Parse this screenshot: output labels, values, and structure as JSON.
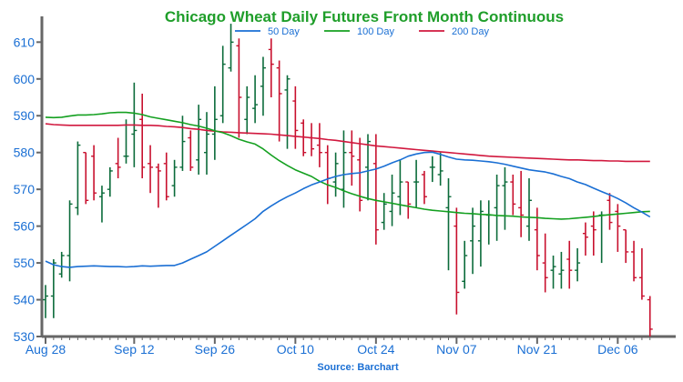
{
  "chart_data": {
    "type": "ohlc",
    "title": "Chicago Wheat Daily Futures Front Month Continuous",
    "source": "Source: Barchart",
    "ylim": [
      530,
      617
    ],
    "y_ticks": [
      530,
      540,
      550,
      560,
      570,
      580,
      590,
      600,
      610
    ],
    "x_tick_labels": [
      "Aug 28",
      "Sep 12",
      "Sep 26",
      "Oct 10",
      "Oct 24",
      "Nov 07",
      "Nov 21",
      "Dec 06"
    ],
    "x_tick_index": [
      0,
      11,
      21,
      31,
      41,
      51,
      61,
      71
    ],
    "grid": false,
    "legend_position": "top-center",
    "colors": {
      "up": "#0b6b3a",
      "down": "#c8102e",
      "ma50": "#1a6fd4",
      "ma100": "#14a020",
      "ma200": "#d1183e",
      "axis": "#666666"
    },
    "series": [
      {
        "name": "50 Day",
        "color": "#1a6fd4"
      },
      {
        "name": "100 Day",
        "color": "#14a020"
      },
      {
        "name": "200 Day",
        "color": "#d1183e"
      }
    ],
    "ohlc": [
      [
        540,
        544,
        535,
        541
      ],
      [
        541,
        551,
        535,
        550
      ],
      [
        547,
        553,
        546,
        552
      ],
      [
        552,
        567,
        545,
        566
      ],
      [
        565,
        583,
        563,
        582
      ],
      [
        580,
        580,
        566,
        567
      ],
      [
        579,
        582,
        567,
        569
      ],
      [
        568,
        571,
        561,
        569
      ],
      [
        570,
        576,
        568,
        575
      ],
      [
        577,
        584,
        573,
        576
      ],
      [
        579,
        589,
        577,
        579
      ],
      [
        585,
        599,
        576,
        586
      ],
      [
        589,
        596,
        573,
        576
      ],
      [
        577,
        582,
        569,
        576
      ],
      [
        576,
        577,
        565,
        575
      ],
      [
        577,
        580,
        567,
        568
      ],
      [
        571,
        578,
        568,
        576
      ],
      [
        576,
        590,
        575,
        583
      ],
      [
        584,
        586,
        575,
        576
      ],
      [
        578,
        593,
        574,
        589
      ],
      [
        580,
        591,
        574,
        585
      ],
      [
        585,
        598,
        578,
        589
      ],
      [
        590,
        609,
        588,
        604
      ],
      [
        603,
        615,
        602,
        610
      ],
      [
        609,
        611,
        584,
        595
      ],
      [
        589,
        598,
        585,
        595
      ],
      [
        592,
        601,
        588,
        593
      ],
      [
        598,
        606,
        590,
        603
      ],
      [
        608,
        611,
        595,
        604
      ],
      [
        603,
        605,
        583,
        596
      ],
      [
        597,
        601,
        581,
        600
      ],
      [
        594,
        598,
        581,
        586
      ],
      [
        588,
        589,
        579,
        580
      ],
      [
        584,
        588,
        579,
        581
      ],
      [
        582,
        588,
        576,
        580
      ],
      [
        580,
        582,
        566,
        573
      ],
      [
        572,
        580,
        568,
        577
      ],
      [
        570,
        586,
        565,
        580
      ],
      [
        580,
        586,
        571,
        579
      ],
      [
        578,
        584,
        564,
        567
      ],
      [
        576,
        585,
        567,
        583
      ],
      [
        577,
        585,
        555,
        559
      ],
      [
        561,
        569,
        559,
        566
      ],
      [
        564,
        574,
        560,
        569
      ],
      [
        568,
        578,
        563,
        572
      ],
      [
        572,
        572,
        562,
        566
      ],
      [
        572,
        578,
        565,
        572
      ],
      [
        574,
        575,
        566,
        568
      ],
      [
        576,
        579,
        572,
        576
      ],
      [
        574,
        580,
        571,
        575
      ],
      [
        565,
        573,
        548,
        568
      ],
      [
        560,
        565,
        536,
        542
      ],
      [
        545,
        556,
        543,
        552
      ],
      [
        556,
        565,
        547,
        560
      ],
      [
        556,
        567,
        549,
        564
      ],
      [
        563,
        567,
        555,
        563
      ],
      [
        565,
        574,
        556,
        571
      ],
      [
        571,
        576,
        559,
        572
      ],
      [
        572,
        574,
        563,
        566
      ],
      [
        565,
        575,
        557,
        563
      ],
      [
        560,
        573,
        556,
        567
      ],
      [
        559,
        565,
        548,
        552
      ],
      [
        550,
        558,
        542,
        546
      ],
      [
        548,
        552,
        543,
        549
      ],
      [
        547,
        553,
        543,
        548
      ],
      [
        551,
        556,
        543,
        548
      ],
      [
        548,
        554,
        545,
        550
      ],
      [
        558,
        561,
        552,
        557
      ],
      [
        560,
        564,
        552,
        559
      ],
      [
        563,
        564,
        550,
        563
      ],
      [
        567,
        569,
        559,
        561
      ],
      [
        564,
        566,
        553,
        560
      ],
      [
        559,
        559,
        550,
        553
      ],
      [
        553,
        556,
        545,
        546
      ],
      [
        546,
        554,
        540,
        541
      ],
      [
        540,
        541,
        530,
        532
      ]
    ],
    "ma50": [
      [
        0,
        550.5
      ],
      [
        1,
        549.5
      ],
      [
        2,
        549
      ],
      [
        3,
        548.8
      ],
      [
        4,
        549
      ],
      [
        5,
        549.1
      ],
      [
        6,
        549.2
      ],
      [
        7,
        549.1
      ],
      [
        8,
        549
      ],
      [
        9,
        549
      ],
      [
        10,
        548.9
      ],
      [
        11,
        549
      ],
      [
        12,
        549.2
      ],
      [
        13,
        549.1
      ],
      [
        14,
        549.2
      ],
      [
        15,
        549.3
      ],
      [
        16,
        549.3
      ],
      [
        17,
        550
      ],
      [
        18,
        551
      ],
      [
        19,
        552
      ],
      [
        20,
        553
      ],
      [
        21,
        554.5
      ],
      [
        22,
        556
      ],
      [
        23,
        557.5
      ],
      [
        24,
        559
      ],
      [
        25,
        560.5
      ],
      [
        26,
        562
      ],
      [
        27,
        564
      ],
      [
        28,
        565.5
      ],
      [
        29,
        566.8
      ],
      [
        30,
        568
      ],
      [
        31,
        569
      ],
      [
        32,
        570.2
      ],
      [
        33,
        571.2
      ],
      [
        34,
        572
      ],
      [
        35,
        572.8
      ],
      [
        36,
        573.5
      ],
      [
        37,
        574
      ],
      [
        38,
        574.3
      ],
      [
        39,
        574.5
      ],
      [
        40,
        575
      ],
      [
        41,
        575.5
      ],
      [
        42,
        576.3
      ],
      [
        43,
        577.2
      ],
      [
        44,
        578
      ],
      [
        45,
        579
      ],
      [
        46,
        579.6
      ],
      [
        47,
        580
      ],
      [
        48,
        580.1
      ],
      [
        49,
        579.5
      ],
      [
        50,
        578.8
      ],
      [
        51,
        578.2
      ],
      [
        52,
        578
      ],
      [
        53,
        577.9
      ],
      [
        54,
        577.7
      ],
      [
        55,
        577.5
      ],
      [
        56,
        577.2
      ],
      [
        57,
        576.8
      ],
      [
        58,
        576.3
      ],
      [
        59,
        575.8
      ],
      [
        60,
        575.3
      ],
      [
        61,
        575
      ],
      [
        62,
        574.7
      ],
      [
        63,
        574.2
      ],
      [
        64,
        573.5
      ],
      [
        65,
        572.9
      ],
      [
        66,
        572
      ],
      [
        67,
        571.3
      ],
      [
        68,
        570.3
      ],
      [
        69,
        569.4
      ],
      [
        70,
        568.5
      ],
      [
        71,
        567.5
      ],
      [
        72,
        566.3
      ],
      [
        73,
        565
      ],
      [
        74,
        563.8
      ],
      [
        75,
        562.5
      ]
    ],
    "ma100": [
      [
        0,
        589.6
      ],
      [
        1,
        589.5
      ],
      [
        2,
        589.6
      ],
      [
        3,
        589.9
      ],
      [
        4,
        590.2
      ],
      [
        5,
        590.2
      ],
      [
        6,
        590.3
      ],
      [
        7,
        590.5
      ],
      [
        8,
        590.8
      ],
      [
        9,
        590.9
      ],
      [
        10,
        590.9
      ],
      [
        11,
        590.7
      ],
      [
        12,
        590.3
      ],
      [
        13,
        589.7
      ],
      [
        14,
        589.3
      ],
      [
        15,
        588.9
      ],
      [
        16,
        588.5
      ],
      [
        17,
        588.1
      ],
      [
        18,
        587.6
      ],
      [
        19,
        587.2
      ],
      [
        20,
        586.6
      ],
      [
        21,
        585.9
      ],
      [
        22,
        585.4
      ],
      [
        23,
        584.6
      ],
      [
        24,
        583.6
      ],
      [
        25,
        582.9
      ],
      [
        26,
        582.3
      ],
      [
        27,
        581
      ],
      [
        28,
        579.3
      ],
      [
        29,
        577.8
      ],
      [
        30,
        576.5
      ],
      [
        31,
        575.3
      ],
      [
        32,
        574.4
      ],
      [
        33,
        573.5
      ],
      [
        34,
        572.2
      ],
      [
        35,
        571.2
      ],
      [
        36,
        570.5
      ],
      [
        37,
        569.6
      ],
      [
        38,
        568.8
      ],
      [
        39,
        568.1
      ],
      [
        40,
        567.5
      ],
      [
        41,
        567
      ],
      [
        42,
        566.6
      ],
      [
        43,
        566.2
      ],
      [
        44,
        565.8
      ],
      [
        45,
        565.4
      ],
      [
        46,
        565
      ],
      [
        47,
        564.6
      ],
      [
        48,
        564.3
      ],
      [
        49,
        564.1
      ],
      [
        50,
        563.9
      ],
      [
        51,
        563.7
      ],
      [
        52,
        563.5
      ],
      [
        53,
        563.4
      ],
      [
        54,
        563.2
      ],
      [
        55,
        563.1
      ],
      [
        56,
        562.9
      ],
      [
        57,
        562.8
      ],
      [
        58,
        562.7
      ],
      [
        59,
        562.5
      ],
      [
        60,
        562.4
      ],
      [
        61,
        562.3
      ],
      [
        62,
        562.1
      ],
      [
        63,
        562
      ],
      [
        64,
        561.9
      ],
      [
        65,
        562
      ],
      [
        66,
        562.2
      ],
      [
        67,
        562.4
      ],
      [
        68,
        562.6
      ],
      [
        69,
        562.9
      ],
      [
        70,
        563.1
      ],
      [
        71,
        563.3
      ],
      [
        72,
        563.5
      ],
      [
        73,
        563.7
      ],
      [
        74,
        563.9
      ],
      [
        75,
        564
      ]
    ],
    "ma200": [
      [
        0,
        587.8
      ],
      [
        1,
        587.6
      ],
      [
        2,
        587.5
      ],
      [
        3,
        587.4
      ],
      [
        4,
        587.4
      ],
      [
        5,
        587.4
      ],
      [
        6,
        587.4
      ],
      [
        7,
        587.4
      ],
      [
        8,
        587.4
      ],
      [
        9,
        587.4
      ],
      [
        10,
        587.5
      ],
      [
        11,
        587.5
      ],
      [
        12,
        587.4
      ],
      [
        13,
        587.4
      ],
      [
        14,
        587.3
      ],
      [
        15,
        587.1
      ],
      [
        16,
        587
      ],
      [
        17,
        586.8
      ],
      [
        18,
        586.5
      ],
      [
        19,
        586.3
      ],
      [
        20,
        586
      ],
      [
        21,
        585.8
      ],
      [
        22,
        585.6
      ],
      [
        23,
        585.5
      ],
      [
        24,
        585.4
      ],
      [
        25,
        585.3
      ],
      [
        26,
        585.2
      ],
      [
        27,
        585.1
      ],
      [
        28,
        585
      ],
      [
        29,
        584.8
      ],
      [
        30,
        584.6
      ],
      [
        31,
        584.4
      ],
      [
        32,
        584.2
      ],
      [
        33,
        584
      ],
      [
        34,
        583.8
      ],
      [
        35,
        583.5
      ],
      [
        36,
        583.3
      ],
      [
        37,
        583
      ],
      [
        38,
        582.7
      ],
      [
        39,
        582.4
      ],
      [
        40,
        582.1
      ],
      [
        41,
        581.8
      ],
      [
        42,
        581.6
      ],
      [
        43,
        581.4
      ],
      [
        44,
        581.2
      ],
      [
        45,
        581
      ],
      [
        46,
        580.8
      ],
      [
        47,
        580.6
      ],
      [
        48,
        580.4
      ],
      [
        49,
        580.2
      ],
      [
        50,
        580
      ],
      [
        51,
        579.8
      ],
      [
        52,
        579.6
      ],
      [
        53,
        579.4
      ],
      [
        54,
        579.2
      ],
      [
        55,
        579
      ],
      [
        56,
        578.9
      ],
      [
        57,
        578.8
      ],
      [
        58,
        578.7
      ],
      [
        59,
        578.6
      ],
      [
        60,
        578.5
      ],
      [
        61,
        578.4
      ],
      [
        62,
        578.3
      ],
      [
        63,
        578.2
      ],
      [
        64,
        578.1
      ],
      [
        65,
        578
      ],
      [
        66,
        578
      ],
      [
        67,
        577.9
      ],
      [
        68,
        577.8
      ],
      [
        69,
        577.8
      ],
      [
        70,
        577.7
      ],
      [
        71,
        577.7
      ],
      [
        72,
        577.6
      ],
      [
        73,
        577.6
      ],
      [
        74,
        577.6
      ],
      [
        75,
        577.6
      ]
    ]
  }
}
